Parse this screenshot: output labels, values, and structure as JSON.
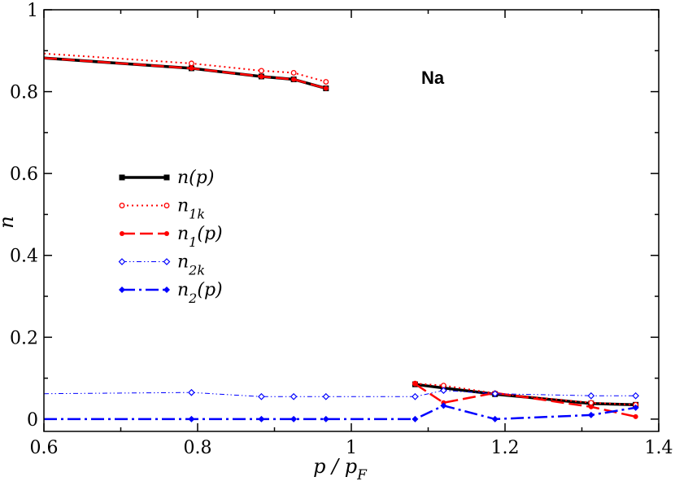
{
  "chart_data": {
    "type": "line",
    "title": "",
    "xlabel": "p / p",
    "xlabel_sub": "F",
    "ylabel": "n",
    "xlim": [
      0.6,
      1.4
    ],
    "ylim": [
      -0.03,
      1.0
    ],
    "xticks": [
      0.6,
      0.8,
      1.0,
      1.2,
      1.4
    ],
    "xtick_labels": [
      "0.6",
      "0.8",
      "1",
      "1.2",
      "1.4"
    ],
    "yticks": [
      0,
      0.2,
      0.4,
      0.6,
      0.8,
      1.0
    ],
    "ytick_labels": [
      "0",
      "0.2",
      "0.4",
      "0.6",
      "0.8",
      "1"
    ],
    "annotation": "Na",
    "legend_position": "center-left",
    "series": [
      {
        "name": "n(p)",
        "legend": {
          "main": "n(p)",
          "sub": "",
          "tail": ""
        },
        "color": "#000000",
        "dash": "",
        "width": 3.5,
        "marker": "square",
        "segments": [
          [
            [
              0.6,
              0.882
            ],
            [
              0.792,
              0.857
            ],
            [
              0.883,
              0.837
            ],
            [
              0.925,
              0.83
            ],
            [
              0.967,
              0.808
            ]
          ],
          [
            [
              1.083,
              0.085
            ],
            [
              1.12,
              0.076
            ],
            [
              1.187,
              0.061
            ],
            [
              1.312,
              0.038
            ],
            [
              1.37,
              0.035
            ]
          ]
        ]
      },
      {
        "name": "n1k",
        "legend": {
          "main": "n",
          "sub": "1k",
          "tail": ""
        },
        "color": "#ff0000",
        "dash": "2,4",
        "width": 2,
        "marker": "open-circle",
        "segments": [
          [
            [
              0.6,
              0.893
            ],
            [
              0.792,
              0.869
            ],
            [
              0.883,
              0.851
            ],
            [
              0.925,
              0.846
            ],
            [
              0.967,
              0.824
            ]
          ],
          [
            [
              1.083,
              0.087
            ],
            [
              1.12,
              0.082
            ],
            [
              1.187,
              0.063
            ],
            [
              1.312,
              0.04
            ],
            [
              1.37,
              0.035
            ]
          ]
        ]
      },
      {
        "name": "n1(p)",
        "legend": {
          "main": "n",
          "sub": "1",
          "tail": "(p)"
        },
        "color": "#ff0000",
        "dash": "16,6",
        "width": 2.5,
        "marker": "filled-circle",
        "segments": [
          [
            [
              0.6,
              0.882
            ],
            [
              0.792,
              0.857
            ],
            [
              0.883,
              0.837
            ],
            [
              0.925,
              0.83
            ],
            [
              0.967,
              0.808
            ]
          ],
          [
            [
              1.083,
              0.086
            ],
            [
              1.12,
              0.04
            ],
            [
              1.187,
              0.064
            ],
            [
              1.312,
              0.03
            ],
            [
              1.37,
              0.006
            ]
          ]
        ]
      },
      {
        "name": "n2k",
        "legend": {
          "main": "n",
          "sub": "2k",
          "tail": ""
        },
        "color": "#0000ff",
        "dash": "6,3,1.5,3,1.5,3",
        "width": 1,
        "marker": "open-diamond",
        "segments": [
          [
            [
              0.6,
              0.062
            ],
            [
              0.792,
              0.065
            ],
            [
              0.883,
              0.055
            ],
            [
              0.925,
              0.055
            ],
            [
              0.967,
              0.055
            ],
            [
              1.083,
              0.055
            ],
            [
              1.12,
              0.07
            ],
            [
              1.187,
              0.062
            ],
            [
              1.312,
              0.057
            ],
            [
              1.37,
              0.057
            ]
          ]
        ]
      },
      {
        "name": "n2(p)",
        "legend": {
          "main": "n",
          "sub": "2",
          "tail": "(p)"
        },
        "color": "#0000ff",
        "dash": "16,5,3,5",
        "width": 2.5,
        "marker": "filled-diamond",
        "segments": [
          [
            [
              0.6,
              0.0
            ],
            [
              0.792,
              0.0
            ],
            [
              0.883,
              0.0
            ],
            [
              0.925,
              0.0
            ],
            [
              0.967,
              0.0
            ],
            [
              1.083,
              0.0
            ],
            [
              1.12,
              0.033
            ],
            [
              1.187,
              0.0
            ],
            [
              1.312,
              0.01
            ],
            [
              1.37,
              0.028
            ]
          ]
        ]
      }
    ]
  }
}
